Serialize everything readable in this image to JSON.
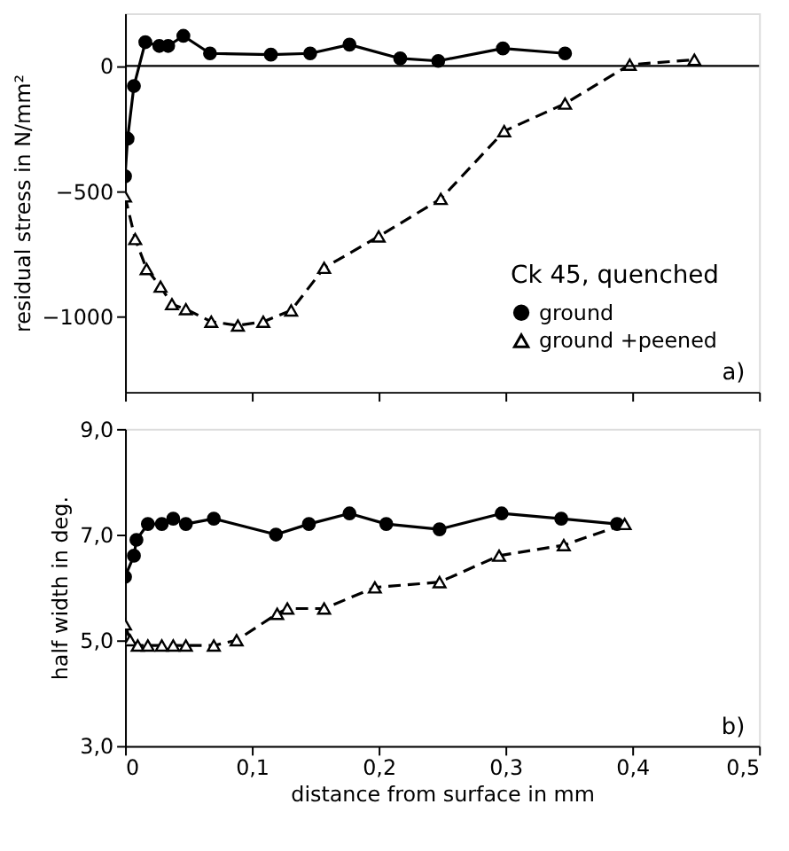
{
  "chart_data": [
    {
      "type": "line",
      "ylabel": "residual stress in N/mm²",
      "legend_title": "Ck 45, quenched",
      "legend": "bottom right",
      "grid": false,
      "tick_labels": "y",
      "xlim": [
        0,
        0.5
      ],
      "xticks": [
        {
          "value": 0,
          "label": null
        },
        {
          "value": 0.1,
          "label": null
        },
        {
          "value": 0.2,
          "label": null
        },
        {
          "value": 0.3,
          "label": null
        },
        {
          "value": 0.4,
          "label": null
        },
        {
          "value": 0.5,
          "label": null
        }
      ],
      "ylim": [
        -1300,
        210
      ],
      "yticks": [
        -1000,
        -500,
        0
      ],
      "ref_lines": [
        {
          "axis": "y",
          "value": 0
        }
      ],
      "annotations": [
        "a)"
      ],
      "series": [
        {
          "name": "ground",
          "color": "#000000",
          "marker": "circle",
          "line_style": "solid",
          "x": [
            0,
            0.002,
            0.007,
            0.016,
            0.027,
            0.034,
            0.046,
            0.067,
            0.115,
            0.146,
            0.177,
            0.217,
            0.247,
            0.298,
            0.347
          ],
          "values": [
            -440,
            -290,
            -80,
            95,
            80,
            80,
            120,
            50,
            45,
            50,
            85,
            30,
            20,
            70,
            50
          ]
        },
        {
          "name": "ground +peened",
          "color": "#000000",
          "marker": "triangle",
          "line_style": "dashed",
          "x": [
            0,
            0.008,
            0.017,
            0.028,
            0.037,
            0.048,
            0.068,
            0.089,
            0.109,
            0.131,
            0.157,
            0.2,
            0.249,
            0.299,
            0.347,
            0.398,
            0.449
          ],
          "values": [
            -520,
            -690,
            -810,
            -880,
            -950,
            -970,
            -1020,
            -1035,
            -1020,
            -975,
            -805,
            -680,
            -530,
            -260,
            -150,
            5,
            25
          ]
        }
      ]
    },
    {
      "type": "line",
      "xlabel": "distance from surface in mm",
      "ylabel": "half width in deg.",
      "grid": false,
      "xlim": [
        0,
        0.5
      ],
      "xticks": [
        0,
        {
          "value": 0.1,
          "label": "0,1"
        },
        {
          "value": 0.2,
          "label": "0,2"
        },
        {
          "value": 0.3,
          "label": "0,3"
        },
        {
          "value": 0.4,
          "label": "0,4"
        },
        {
          "value": 0.5,
          "label": "0,5"
        }
      ],
      "ylim": [
        3,
        9
      ],
      "yticks": [
        {
          "value": 3,
          "label": "3,0"
        },
        {
          "value": 5,
          "label": "5,0"
        },
        {
          "value": 7,
          "label": "7,0"
        },
        {
          "value": 9,
          "label": "9,0"
        }
      ],
      "annotations": [
        "b)"
      ],
      "series": [
        {
          "color": "#000000",
          "marker": "circle",
          "line_style": "solid",
          "x": [
            0,
            0.007,
            0.009,
            0.018,
            0.029,
            0.038,
            0.048,
            0.07,
            0.119,
            0.145,
            0.177,
            0.206,
            0.248,
            0.297,
            0.344,
            0.388
          ],
          "values": [
            6.2,
            6.6,
            6.9,
            7.2,
            7.2,
            7.3,
            7.2,
            7.3,
            7.0,
            7.2,
            7.4,
            7.2,
            7.1,
            7.4,
            7.3,
            7.2
          ]
        },
        {
          "color": "#000000",
          "marker": "triangle",
          "line_style": "dashed",
          "x": [
            0,
            0.004,
            0.01,
            0.018,
            0.029,
            0.038,
            0.048,
            0.07,
            0.088,
            0.12,
            0.128,
            0.157,
            0.197,
            0.248,
            0.295,
            0.346,
            0.394
          ],
          "values": [
            5.3,
            5.0,
            4.9,
            4.9,
            4.9,
            4.9,
            4.9,
            4.9,
            5.0,
            5.5,
            5.6,
            5.6,
            6.0,
            6.1,
            6.6,
            6.8,
            7.2
          ]
        }
      ]
    }
  ]
}
